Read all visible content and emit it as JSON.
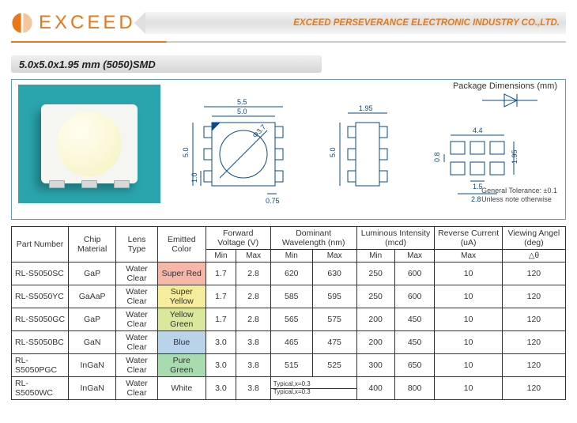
{
  "header": {
    "brand": "EXCEED",
    "company": "EXCEED PERSEVERANCE ELECTRONIC INDUSTRY CO.,LTD.",
    "brandColor": "#e8771a"
  },
  "title": "5.0x5.0x1.95 mm (5050)SMD",
  "diagram": {
    "pkg_title": "Package Dimensions (mm)",
    "tolerance1": "General Tolerance: ±0.1",
    "tolerance2": "Unless note otherwise",
    "top": {
      "w": "5.5",
      "w_in": "5.0",
      "h": "5.0",
      "h_in": "1.0",
      "edge": "0.75",
      "dia": "Φ3.7"
    },
    "side": {
      "w": "1.95",
      "h": "5.0"
    },
    "pad": {
      "w": "4.4",
      "h": "1.95",
      "gap": "0.8",
      "pw": "1.5",
      "pitch": "2.8"
    }
  },
  "table": {
    "headers": {
      "pn": "Part Number",
      "chip": "Chip Material",
      "lens": "Lens Type",
      "color": "Emitted Color",
      "fv": "Forward Voltage (V)",
      "wl": "Dominant Wavelength (nm)",
      "li": "Luminous Intensity (mcd)",
      "rc": "Reverse Current (uA)",
      "va": "Viewing Angel (deg)",
      "min": "Min",
      "max": "Max",
      "delta": "△θ"
    },
    "rows": [
      {
        "pn": "RL-S5050SC",
        "chip": "GaP",
        "lens": "Water Clear",
        "color": "Super Red",
        "bg": "#f6b6a8",
        "fvmin": "1.7",
        "fvmax": "2.8",
        "wlmin": "620",
        "wlmax": "630",
        "limin": "250",
        "limax": "600",
        "rc": "10",
        "va": "120",
        "typ": false
      },
      {
        "pn": "RL-S5050YC",
        "chip": "GaAaP",
        "lens": "Water Clear",
        "color": "Super Yellow",
        "bg": "#f5ec9c",
        "fvmin": "1.7",
        "fvmax": "2.8",
        "wlmin": "585",
        "wlmax": "595",
        "limin": "250",
        "limax": "600",
        "rc": "10",
        "va": "120",
        "typ": false
      },
      {
        "pn": "RL-S5050GC",
        "chip": "GaP",
        "lens": "Water Clear",
        "color": "Yellow Green",
        "bg": "#d9e89d",
        "fvmin": "1.7",
        "fvmax": "2.8",
        "wlmin": "565",
        "wlmax": "575",
        "limin": "200",
        "limax": "450",
        "rc": "10",
        "va": "120",
        "typ": false
      },
      {
        "pn": "RL-S5050BC",
        "chip": "GaN",
        "lens": "Water Clear",
        "color": "Blue",
        "bg": "#b9d3ea",
        "fvmin": "3.0",
        "fvmax": "3.8",
        "wlmin": "465",
        "wlmax": "475",
        "limin": "200",
        "limax": "450",
        "rc": "10",
        "va": "120",
        "typ": false
      },
      {
        "pn": "RL-S5050PGC",
        "chip": "InGaN",
        "lens": "Water Clear",
        "color": "Pure Green",
        "bg": "#a8dcae",
        "fvmin": "3.0",
        "fvmax": "3.8",
        "wlmin": "515",
        "wlmax": "525",
        "limin": "300",
        "limax": "650",
        "rc": "10",
        "va": "120",
        "typ": false
      },
      {
        "pn": "RL-S5050WC",
        "chip": "InGaN",
        "lens": "Water Clear",
        "color": "White",
        "bg": "#ffffff",
        "fvmin": "3.0",
        "fvmax": "3.8",
        "wlmin": "Typical,x=0.3",
        "wlmax": "Typical,x=0.3",
        "limin": "400",
        "limax": "800",
        "rc": "10",
        "va": "120",
        "typ": true
      }
    ]
  }
}
